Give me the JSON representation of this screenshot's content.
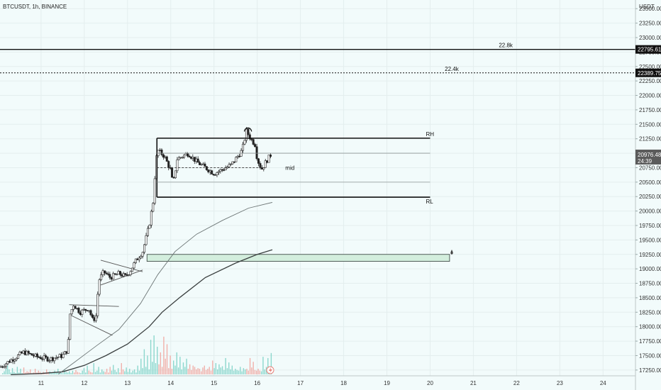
{
  "header": {
    "title": "BTCUSDT, 1h, BINANCE"
  },
  "axis": {
    "currency": "USDT"
  },
  "chart_data": {
    "type": "candlestick",
    "symbol": "BTCUSDT",
    "interval": "1h",
    "exchange": "BINANCE",
    "x_ticks": [
      "11",
      "12",
      "13",
      "14",
      "15",
      "16",
      "17",
      "18",
      "19",
      "20",
      "21",
      "22",
      "23",
      "24"
    ],
    "y_ticks": [
      17250,
      17500,
      17750,
      18000,
      18250,
      18500,
      18750,
      19000,
      19250,
      19500,
      19750,
      20000,
      20250,
      20500,
      20750,
      21000,
      21250,
      21500,
      21750,
      22000,
      22250,
      22500,
      22750,
      23000,
      23250,
      23500
    ],
    "ylim": [
      17150,
      23650
    ],
    "xlim": [
      10.05,
      24.75
    ],
    "price_path": [
      [
        10.05,
        17300
      ],
      [
        10.3,
        17420
      ],
      [
        10.6,
        17560
      ],
      [
        10.9,
        17480
      ],
      [
        11.2,
        17440
      ],
      [
        11.5,
        17500
      ],
      [
        11.62,
        17600
      ],
      [
        11.66,
        18200
      ],
      [
        11.75,
        18380
      ],
      [
        11.9,
        18250
      ],
      [
        12.1,
        18320
      ],
      [
        12.2,
        18100
      ],
      [
        12.28,
        18200
      ],
      [
        12.3,
        18500
      ],
      [
        12.35,
        18820
      ],
      [
        12.45,
        18950
      ],
      [
        12.6,
        18850
      ],
      [
        12.8,
        18920
      ],
      [
        12.95,
        18870
      ],
      [
        13.05,
        18950
      ],
      [
        13.2,
        19150
      ],
      [
        13.35,
        19300
      ],
      [
        13.5,
        19750
      ],
      [
        13.6,
        20200
      ],
      [
        13.65,
        20850
      ],
      [
        13.7,
        21050
      ],
      [
        13.85,
        20950
      ],
      [
        14.0,
        20700
      ],
      [
        14.05,
        20450
      ],
      [
        14.15,
        20900
      ],
      [
        14.4,
        21000
      ],
      [
        14.6,
        20850
      ],
      [
        14.8,
        20750
      ],
      [
        15.0,
        20650
      ],
      [
        15.2,
        20720
      ],
      [
        15.4,
        20800
      ],
      [
        15.55,
        20950
      ],
      [
        15.65,
        21050
      ],
      [
        15.75,
        21380
      ],
      [
        15.85,
        21250
      ],
      [
        15.95,
        21150
      ],
      [
        16.0,
        20900
      ],
      [
        16.1,
        20720
      ],
      [
        16.2,
        20850
      ],
      [
        16.32,
        20980
      ]
    ],
    "horizontal_levels": [
      {
        "label": "22.8k",
        "price": 22795.61
      },
      {
        "label": "22.4k",
        "price": 22389.75
      }
    ],
    "range_box": {
      "high_label": "RH",
      "high": 21260,
      "low_label": "RL",
      "low": 20240,
      "mid_label": "mid",
      "mid": 20750,
      "inner_upper": 21000,
      "inner_lower": 20500,
      "x_start": 13.68,
      "x_end": 20.0
    },
    "demand_zone": {
      "top": 19250,
      "bottom": 19130,
      "x_start": 13.45,
      "x_end": 20.45
    },
    "moving_averages": [
      {
        "points": [
          [
            10.3,
            17170
          ],
          [
            11.0,
            17190
          ],
          [
            11.5,
            17220
          ],
          [
            12.0,
            17330
          ],
          [
            12.5,
            17500
          ],
          [
            13.0,
            17700
          ],
          [
            13.5,
            18000
          ],
          [
            13.8,
            18250
          ],
          [
            14.2,
            18500
          ],
          [
            14.8,
            18850
          ],
          [
            15.5,
            19100
          ],
          [
            16.0,
            19250
          ],
          [
            16.35,
            19330
          ]
        ]
      },
      {
        "points": [
          [
            11.4,
            17180
          ],
          [
            11.8,
            17400
          ],
          [
            12.3,
            17680
          ],
          [
            12.8,
            17950
          ],
          [
            13.3,
            18400
          ],
          [
            13.7,
            18900
          ],
          [
            14.1,
            19300
          ],
          [
            14.6,
            19600
          ],
          [
            15.2,
            19840
          ],
          [
            15.8,
            20050
          ],
          [
            16.35,
            20150
          ]
        ]
      }
    ],
    "trendlines": [
      {
        "points": [
          [
            11.65,
            18380
          ],
          [
            12.8,
            18350
          ]
        ]
      },
      {
        "points": [
          [
            11.68,
            18200
          ],
          [
            12.65,
            17850
          ]
        ]
      },
      {
        "points": [
          [
            12.38,
            19150
          ],
          [
            13.35,
            18950
          ]
        ]
      },
      {
        "points": [
          [
            12.38,
            18720
          ],
          [
            13.35,
            18980
          ]
        ]
      }
    ],
    "current_price": {
      "price": 20976.48,
      "label": "20976.48",
      "countdown": "24:39"
    },
    "volume": [
      2,
      5,
      9,
      14,
      8,
      3,
      10,
      4,
      2,
      12,
      3,
      9,
      2,
      11,
      3,
      5,
      4,
      8,
      2,
      3,
      9,
      3,
      6,
      4,
      2,
      4,
      3,
      8,
      4,
      5,
      2,
      3,
      6,
      3,
      9,
      2,
      3,
      2,
      8,
      4,
      3,
      5,
      2,
      6,
      3,
      7,
      4,
      3,
      2,
      6,
      10,
      3,
      14,
      6,
      4,
      3,
      18,
      4,
      6,
      12,
      3,
      8,
      5,
      4,
      9,
      3,
      12,
      6,
      15,
      7,
      4,
      10,
      3,
      18,
      8,
      5,
      11,
      4,
      9,
      3,
      6,
      8,
      3,
      14,
      6,
      25,
      10,
      40,
      12,
      30,
      8,
      55,
      20,
      62,
      18,
      44,
      16,
      35,
      12,
      60,
      25,
      48,
      10,
      30,
      9,
      22,
      14,
      35,
      11,
      28,
      8,
      19,
      12,
      25,
      9,
      16,
      7,
      14,
      12,
      8,
      10,
      9,
      5,
      11,
      14,
      7,
      9,
      12,
      6,
      22,
      10,
      18,
      8,
      16,
      11,
      13,
      7,
      26,
      10,
      19,
      8,
      14,
      6,
      9,
      7,
      6,
      12,
      5,
      10,
      8,
      9,
      6,
      26,
      11,
      20,
      7,
      6,
      9,
      6,
      5,
      28,
      8,
      12,
      26,
      10,
      34
    ]
  }
}
